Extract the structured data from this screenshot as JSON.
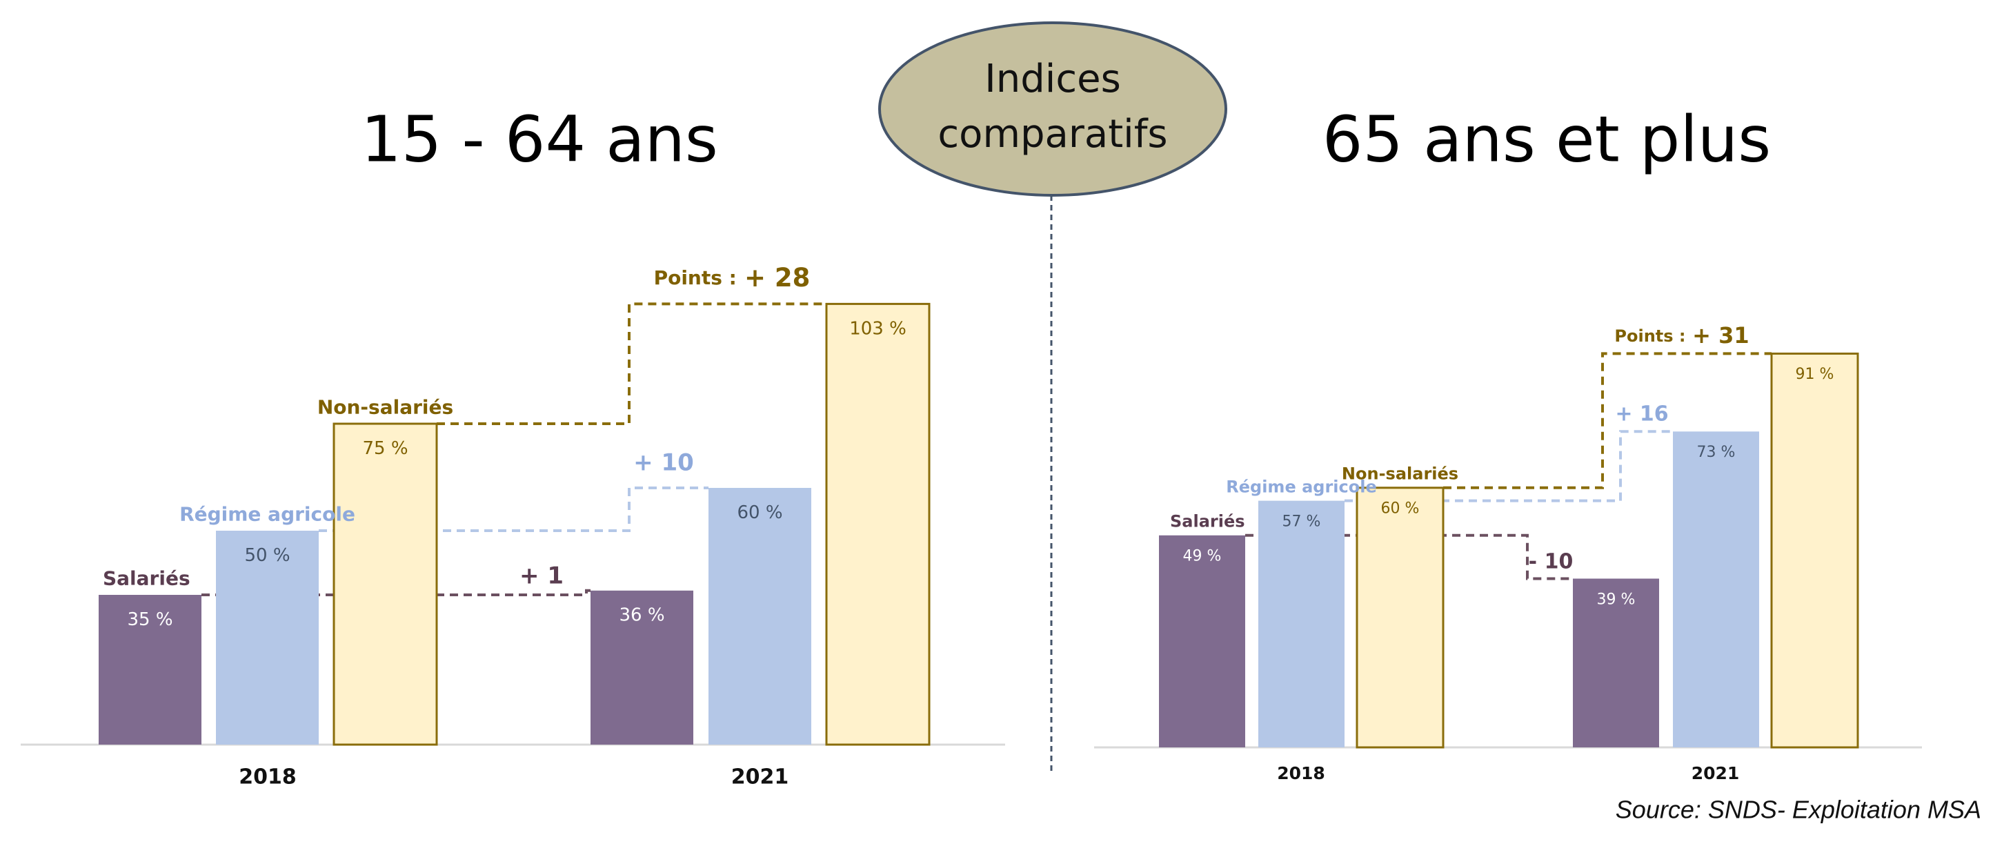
{
  "badge": [
    "Indices",
    "comparatifs"
  ],
  "source": "Source: SNDS- Exploitation MSA",
  "chart_data": [
    {
      "type": "bar",
      "title": "15 - 64 ans",
      "categories": [
        "2018",
        "2021"
      ],
      "points_label": "Points :",
      "series": [
        {
          "name": "Salariés",
          "color": "#7f6b8f",
          "values": [
            35,
            36
          ],
          "value_labels": [
            "35 %",
            "36 %"
          ],
          "change_label": "+ 1"
        },
        {
          "name": "Régime agricole",
          "color": "#b4c7e7",
          "values": [
            50,
            60
          ],
          "value_labels": [
            "50 %",
            "60 %"
          ],
          "change_label": "+ 10"
        },
        {
          "name": "Non-salariés",
          "color": "#fff2cc",
          "values": [
            75,
            103
          ],
          "value_labels": [
            "75 %",
            "103 %"
          ],
          "change_label": "+ 28"
        }
      ]
    },
    {
      "type": "bar",
      "title": "65 ans et plus",
      "categories": [
        "2018",
        "2021"
      ],
      "points_label": "Points :",
      "series": [
        {
          "name": "Salariés",
          "color": "#7f6b8f",
          "values": [
            49,
            39
          ],
          "value_labels": [
            "49 %",
            "39 %"
          ],
          "change_label": "- 10"
        },
        {
          "name": "Régime agricole",
          "color": "#b4c7e7",
          "values": [
            57,
            73
          ],
          "value_labels": [
            "57 %",
            "73 %"
          ],
          "change_label": "+ 16"
        },
        {
          "name": "Non-salariés",
          "color": "#fff2cc",
          "values": [
            60,
            91
          ],
          "value_labels": [
            "60 %",
            "91 %"
          ],
          "change_label": "+ 31"
        }
      ]
    }
  ]
}
